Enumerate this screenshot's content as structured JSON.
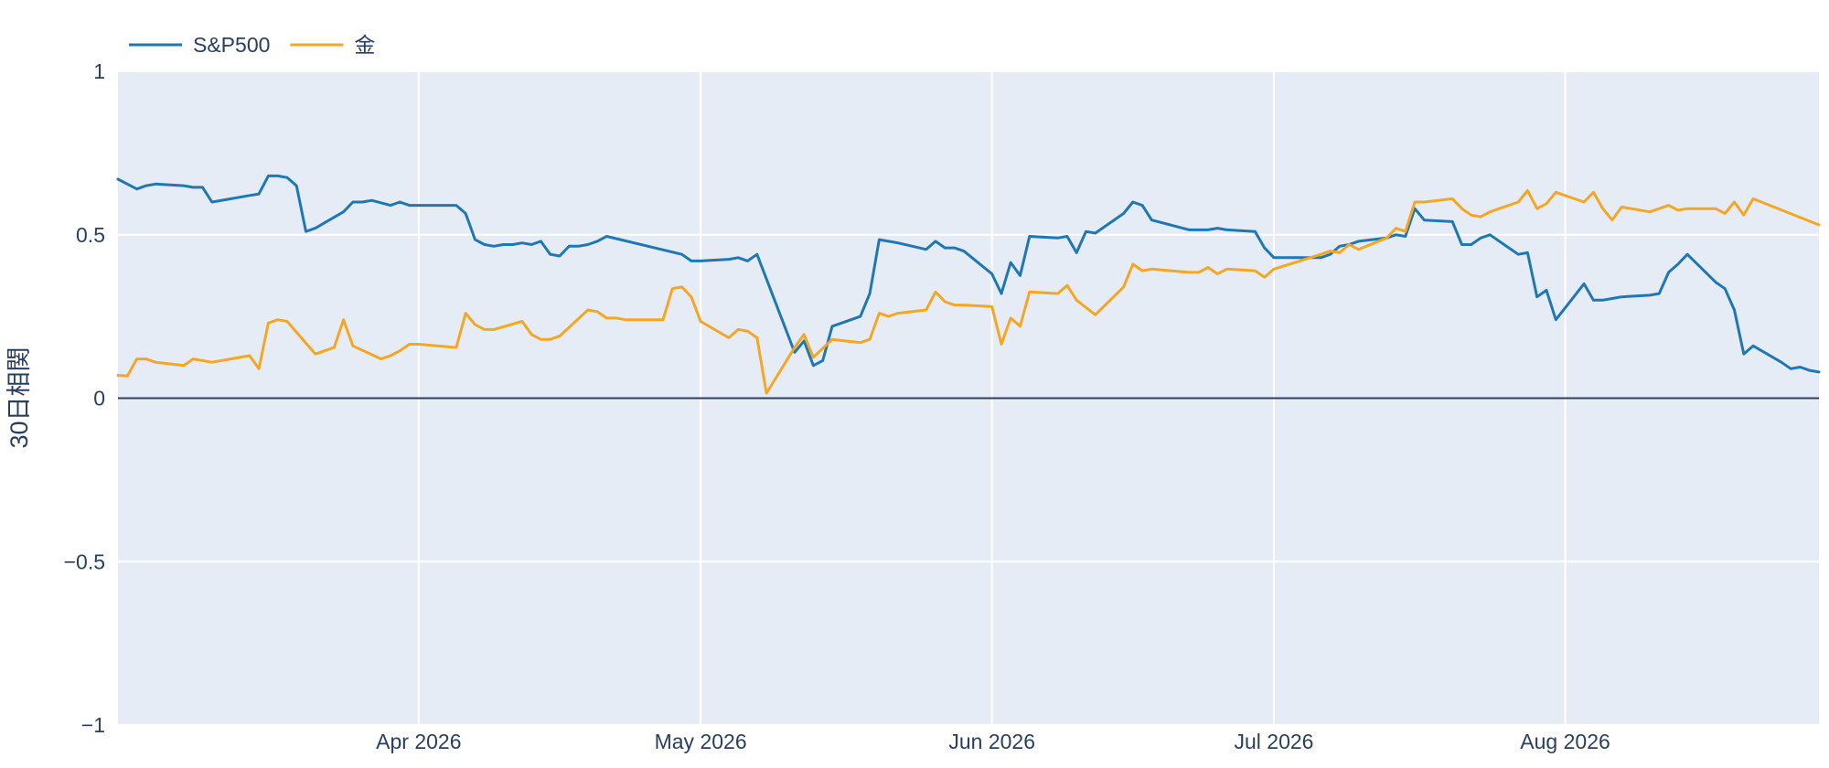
{
  "chart_data": {
    "type": "line",
    "title": "",
    "xlabel": "",
    "ylabel": "30日相関",
    "xlim": [
      "2026-02-28",
      "2026-08-28"
    ],
    "ylim": [
      -1,
      1
    ],
    "y_ticks": [
      1,
      0.5,
      0,
      -0.5,
      -1
    ],
    "y_tick_labels": [
      "1",
      "0.5",
      "0",
      "−0.5",
      "−1"
    ],
    "x_ticks": [
      "2026-04-01",
      "2026-05-01",
      "2026-06-01",
      "2026-07-01",
      "2026-08-01"
    ],
    "x_tick_labels": [
      "Apr 2026",
      "May 2026",
      "Jun 2026",
      "Jul 2026",
      "Aug 2026"
    ],
    "grid": true,
    "zero_line": true,
    "legend": {
      "placement": "top-left",
      "orientation": "horizontal"
    },
    "colors": {
      "plot_bg": "#e5ecf6",
      "grid": "#ffffff",
      "zero_line": "#2a3f5f",
      "text": "#2a3f5f"
    },
    "series": [
      {
        "name": "S&P500",
        "color": "#1f77b4",
        "x": [
          "2026-02-28",
          "2026-03-02",
          "2026-03-03",
          "2026-03-04",
          "2026-03-07",
          "2026-03-08",
          "2026-03-09",
          "2026-03-10",
          "2026-03-14",
          "2026-03-15",
          "2026-03-16",
          "2026-03-17",
          "2026-03-18",
          "2026-03-19",
          "2026-03-20",
          "2026-03-21",
          "2026-03-24",
          "2026-03-25",
          "2026-03-26",
          "2026-03-27",
          "2026-03-29",
          "2026-03-30",
          "2026-03-31",
          "2026-04-01",
          "2026-04-05",
          "2026-04-06",
          "2026-04-07",
          "2026-04-08",
          "2026-04-09",
          "2026-04-10",
          "2026-04-11",
          "2026-04-12",
          "2026-04-13",
          "2026-04-14",
          "2026-04-15",
          "2026-04-16",
          "2026-04-17",
          "2026-04-18",
          "2026-04-19",
          "2026-04-20",
          "2026-04-21",
          "2026-04-29",
          "2026-04-30",
          "2026-05-01",
          "2026-05-04",
          "2026-05-05",
          "2026-05-06",
          "2026-05-07",
          "2026-05-11",
          "2026-05-12",
          "2026-05-13",
          "2026-05-14",
          "2026-05-15",
          "2026-05-18",
          "2026-05-19",
          "2026-05-20",
          "2026-05-21",
          "2026-05-22",
          "2026-05-25",
          "2026-05-26",
          "2026-05-27",
          "2026-05-28",
          "2026-05-29",
          "2026-06-01",
          "2026-06-02",
          "2026-06-03",
          "2026-06-04",
          "2026-06-05",
          "2026-06-08",
          "2026-06-09",
          "2026-06-10",
          "2026-06-11",
          "2026-06-12",
          "2026-06-15",
          "2026-06-16",
          "2026-06-17",
          "2026-06-18",
          "2026-06-22",
          "2026-06-23",
          "2026-06-24",
          "2026-06-25",
          "2026-06-26",
          "2026-06-29",
          "2026-06-30",
          "2026-07-01",
          "2026-07-06",
          "2026-07-07",
          "2026-07-08",
          "2026-07-09",
          "2026-07-10",
          "2026-07-13",
          "2026-07-14",
          "2026-07-15",
          "2026-07-16",
          "2026-07-17",
          "2026-07-20",
          "2026-07-21",
          "2026-07-22",
          "2026-07-23",
          "2026-07-24",
          "2026-07-27",
          "2026-07-28",
          "2026-07-29",
          "2026-07-30",
          "2026-07-31",
          "2026-08-03",
          "2026-08-04",
          "2026-08-05",
          "2026-08-06",
          "2026-08-07",
          "2026-08-10",
          "2026-08-11",
          "2026-08-12",
          "2026-08-13",
          "2026-08-14",
          "2026-08-17",
          "2026-08-18",
          "2026-08-19",
          "2026-08-20",
          "2026-08-21",
          "2026-08-24",
          "2026-08-25",
          "2026-08-26",
          "2026-08-27",
          "2026-08-28"
        ],
        "y": [
          0.67,
          0.64,
          0.65,
          0.655,
          0.65,
          0.645,
          0.645,
          0.6,
          0.62,
          0.625,
          0.68,
          0.68,
          0.675,
          0.65,
          0.51,
          0.52,
          0.57,
          0.6,
          0.6,
          0.605,
          0.59,
          0.6,
          0.59,
          0.59,
          0.59,
          0.565,
          0.485,
          0.47,
          0.465,
          0.47,
          0.47,
          0.475,
          0.47,
          0.48,
          0.44,
          0.435,
          0.465,
          0.465,
          0.47,
          0.48,
          0.495,
          0.44,
          0.42,
          0.42,
          0.425,
          0.43,
          0.42,
          0.44,
          0.14,
          0.175,
          0.1,
          0.115,
          0.22,
          0.25,
          0.32,
          0.485,
          0.48,
          0.475,
          0.455,
          0.48,
          0.46,
          0.46,
          0.45,
          0.38,
          0.32,
          0.415,
          0.375,
          0.495,
          0.49,
          0.495,
          0.445,
          0.51,
          0.505,
          0.565,
          0.6,
          0.59,
          0.545,
          0.515,
          0.515,
          0.515,
          0.52,
          0.515,
          0.51,
          0.46,
          0.43,
          0.43,
          0.44,
          0.465,
          0.47,
          0.48,
          0.49,
          0.5,
          0.495,
          0.58,
          0.545,
          0.54,
          0.47,
          0.47,
          0.49,
          0.5,
          0.44,
          0.445,
          0.31,
          0.33,
          0.24,
          0.35,
          0.3,
          0.3,
          0.305,
          0.31,
          0.315,
          0.32,
          0.385,
          0.41,
          0.44,
          0.355,
          0.335,
          0.27,
          0.135,
          0.16,
          0.11,
          0.09,
          0.095,
          0.085,
          0.08
        ]
      },
      {
        "name": "金",
        "color": "#f5a623",
        "x": [
          "2026-02-28",
          "2026-03-01",
          "2026-03-02",
          "2026-03-03",
          "2026-03-04",
          "2026-03-07",
          "2026-03-08",
          "2026-03-10",
          "2026-03-14",
          "2026-03-15",
          "2026-03-16",
          "2026-03-17",
          "2026-03-18",
          "2026-03-21",
          "2026-03-23",
          "2026-03-24",
          "2026-03-25",
          "2026-03-28",
          "2026-03-29",
          "2026-03-30",
          "2026-03-31",
          "2026-04-01",
          "2026-04-05",
          "2026-04-06",
          "2026-04-07",
          "2026-04-08",
          "2026-04-09",
          "2026-04-12",
          "2026-04-13",
          "2026-04-14",
          "2026-04-15",
          "2026-04-16",
          "2026-04-19",
          "2026-04-20",
          "2026-04-21",
          "2026-04-22",
          "2026-04-23",
          "2026-04-27",
          "2026-04-28",
          "2026-04-29",
          "2026-04-30",
          "2026-05-01",
          "2026-05-04",
          "2026-05-05",
          "2026-05-06",
          "2026-05-07",
          "2026-05-08",
          "2026-05-11",
          "2026-05-12",
          "2026-05-13",
          "2026-05-15",
          "2026-05-18",
          "2026-05-19",
          "2026-05-20",
          "2026-05-21",
          "2026-05-22",
          "2026-05-25",
          "2026-05-26",
          "2026-05-27",
          "2026-05-28",
          "2026-05-29",
          "2026-06-01",
          "2026-06-02",
          "2026-06-03",
          "2026-06-04",
          "2026-06-05",
          "2026-06-08",
          "2026-06-09",
          "2026-06-10",
          "2026-06-12",
          "2026-06-15",
          "2026-06-16",
          "2026-06-17",
          "2026-06-18",
          "2026-06-22",
          "2026-06-23",
          "2026-06-24",
          "2026-06-25",
          "2026-06-26",
          "2026-06-29",
          "2026-06-30",
          "2026-07-01",
          "2026-07-06",
          "2026-07-07",
          "2026-07-08",
          "2026-07-09",
          "2026-07-10",
          "2026-07-13",
          "2026-07-14",
          "2026-07-15",
          "2026-07-16",
          "2026-07-17",
          "2026-07-20",
          "2026-07-21",
          "2026-07-22",
          "2026-07-23",
          "2026-07-24",
          "2026-07-27",
          "2026-07-28",
          "2026-07-29",
          "2026-07-30",
          "2026-07-31",
          "2026-08-03",
          "2026-08-04",
          "2026-08-05",
          "2026-08-06",
          "2026-08-07",
          "2026-08-10",
          "2026-08-11",
          "2026-08-12",
          "2026-08-13",
          "2026-08-14",
          "2026-08-17",
          "2026-08-18",
          "2026-08-19",
          "2026-08-20",
          "2026-08-21",
          "2026-08-28"
        ],
        "y": [
          0.07,
          0.068,
          0.12,
          0.12,
          0.11,
          0.1,
          0.12,
          0.11,
          0.13,
          0.09,
          0.23,
          0.24,
          0.235,
          0.135,
          0.155,
          0.24,
          0.16,
          0.12,
          0.13,
          0.145,
          0.165,
          0.165,
          0.155,
          0.26,
          0.225,
          0.21,
          0.21,
          0.235,
          0.195,
          0.18,
          0.18,
          0.19,
          0.27,
          0.265,
          0.245,
          0.245,
          0.24,
          0.24,
          0.335,
          0.34,
          0.31,
          0.235,
          0.185,
          0.21,
          0.205,
          0.185,
          0.015,
          0.155,
          0.195,
          0.125,
          0.18,
          0.17,
          0.18,
          0.26,
          0.25,
          0.26,
          0.27,
          0.325,
          0.295,
          0.285,
          0.285,
          0.28,
          0.165,
          0.245,
          0.22,
          0.325,
          0.32,
          0.345,
          0.3,
          0.255,
          0.34,
          0.41,
          0.39,
          0.395,
          0.385,
          0.385,
          0.4,
          0.38,
          0.395,
          0.39,
          0.37,
          0.395,
          0.44,
          0.45,
          0.445,
          0.47,
          0.455,
          0.49,
          0.52,
          0.51,
          0.6,
          0.6,
          0.61,
          0.58,
          0.56,
          0.555,
          0.57,
          0.6,
          0.635,
          0.58,
          0.595,
          0.63,
          0.6,
          0.63,
          0.58,
          0.545,
          0.585,
          0.57,
          0.58,
          0.59,
          0.575,
          0.58,
          0.58,
          0.565,
          0.6,
          0.56,
          0.61,
          0.53
        ]
      }
    ]
  }
}
